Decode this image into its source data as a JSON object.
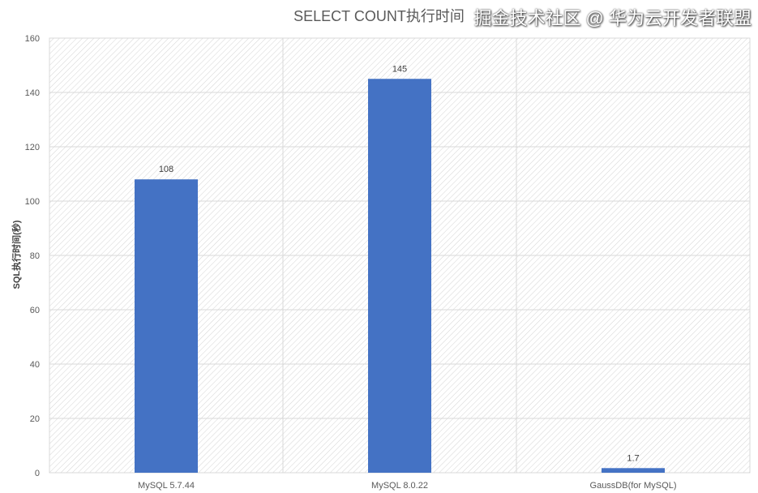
{
  "chart_data": {
    "type": "bar",
    "title": "SELECT COUNT执行时间",
    "xlabel": "",
    "ylabel": "SQL执行时间(秒)",
    "categories": [
      "MySQL 5.7.44",
      "MySQL 8.0.22",
      "GaussDB(for MySQL)"
    ],
    "values": [
      108,
      145,
      1.7
    ],
    "data_labels": [
      "108",
      "145",
      "1.7"
    ],
    "ylim": [
      0,
      160
    ],
    "yticks": [
      0,
      20,
      40,
      60,
      80,
      100,
      120,
      140,
      160
    ],
    "grid": true,
    "bar_color": "#4472C4",
    "background": "diagonal-hatch"
  },
  "watermark": "掘金技术社区 @ 华为云开发者联盟"
}
